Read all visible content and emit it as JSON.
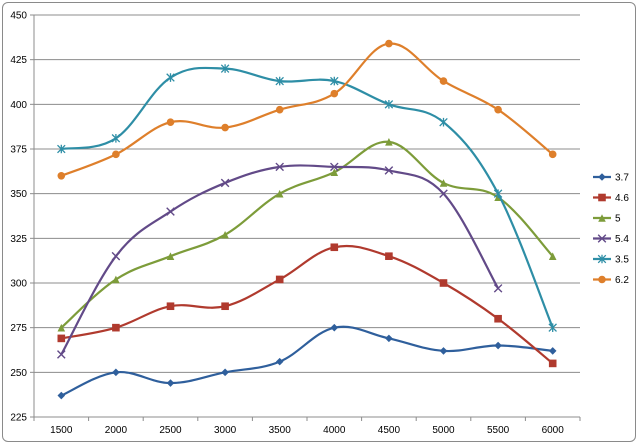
{
  "chart_data": {
    "type": "line",
    "title": "",
    "xlabel": "",
    "ylabel": "",
    "x": [
      1500,
      2000,
      2500,
      3000,
      3500,
      4000,
      4500,
      5000,
      5500,
      6000
    ],
    "ylim": [
      225,
      450
    ],
    "yticks": [
      225,
      250,
      275,
      300,
      325,
      350,
      375,
      400,
      425,
      450
    ],
    "grid": true,
    "legend_position": "right",
    "smooth": true,
    "series": [
      {
        "name": "3.7",
        "color": "#2f5f9c",
        "marker": "diamond",
        "values": [
          237,
          250,
          244,
          250,
          256,
          275,
          269,
          262,
          265,
          262
        ]
      },
      {
        "name": "4.6",
        "color": "#b03a2e",
        "marker": "square",
        "values": [
          269,
          275,
          287,
          287,
          302,
          320,
          315,
          300,
          280,
          255
        ]
      },
      {
        "name": "5",
        "color": "#7d9c3a",
        "marker": "triangle",
        "values": [
          275,
          302,
          315,
          327,
          350,
          362,
          379,
          356,
          348,
          315
        ]
      },
      {
        "name": "5.4",
        "color": "#624a88",
        "marker": "x",
        "values": [
          260,
          315,
          340,
          356,
          365,
          365,
          363,
          350,
          297,
          null
        ]
      },
      {
        "name": "3.5",
        "color": "#2e8ea6",
        "marker": "star",
        "values": [
          375,
          381,
          415,
          420,
          413,
          413,
          400,
          390,
          350,
          275
        ]
      },
      {
        "name": "6.2",
        "color": "#de7f2b",
        "marker": "circle",
        "values": [
          360,
          372,
          390,
          387,
          397,
          406,
          434,
          413,
          397,
          372
        ]
      }
    ]
  }
}
